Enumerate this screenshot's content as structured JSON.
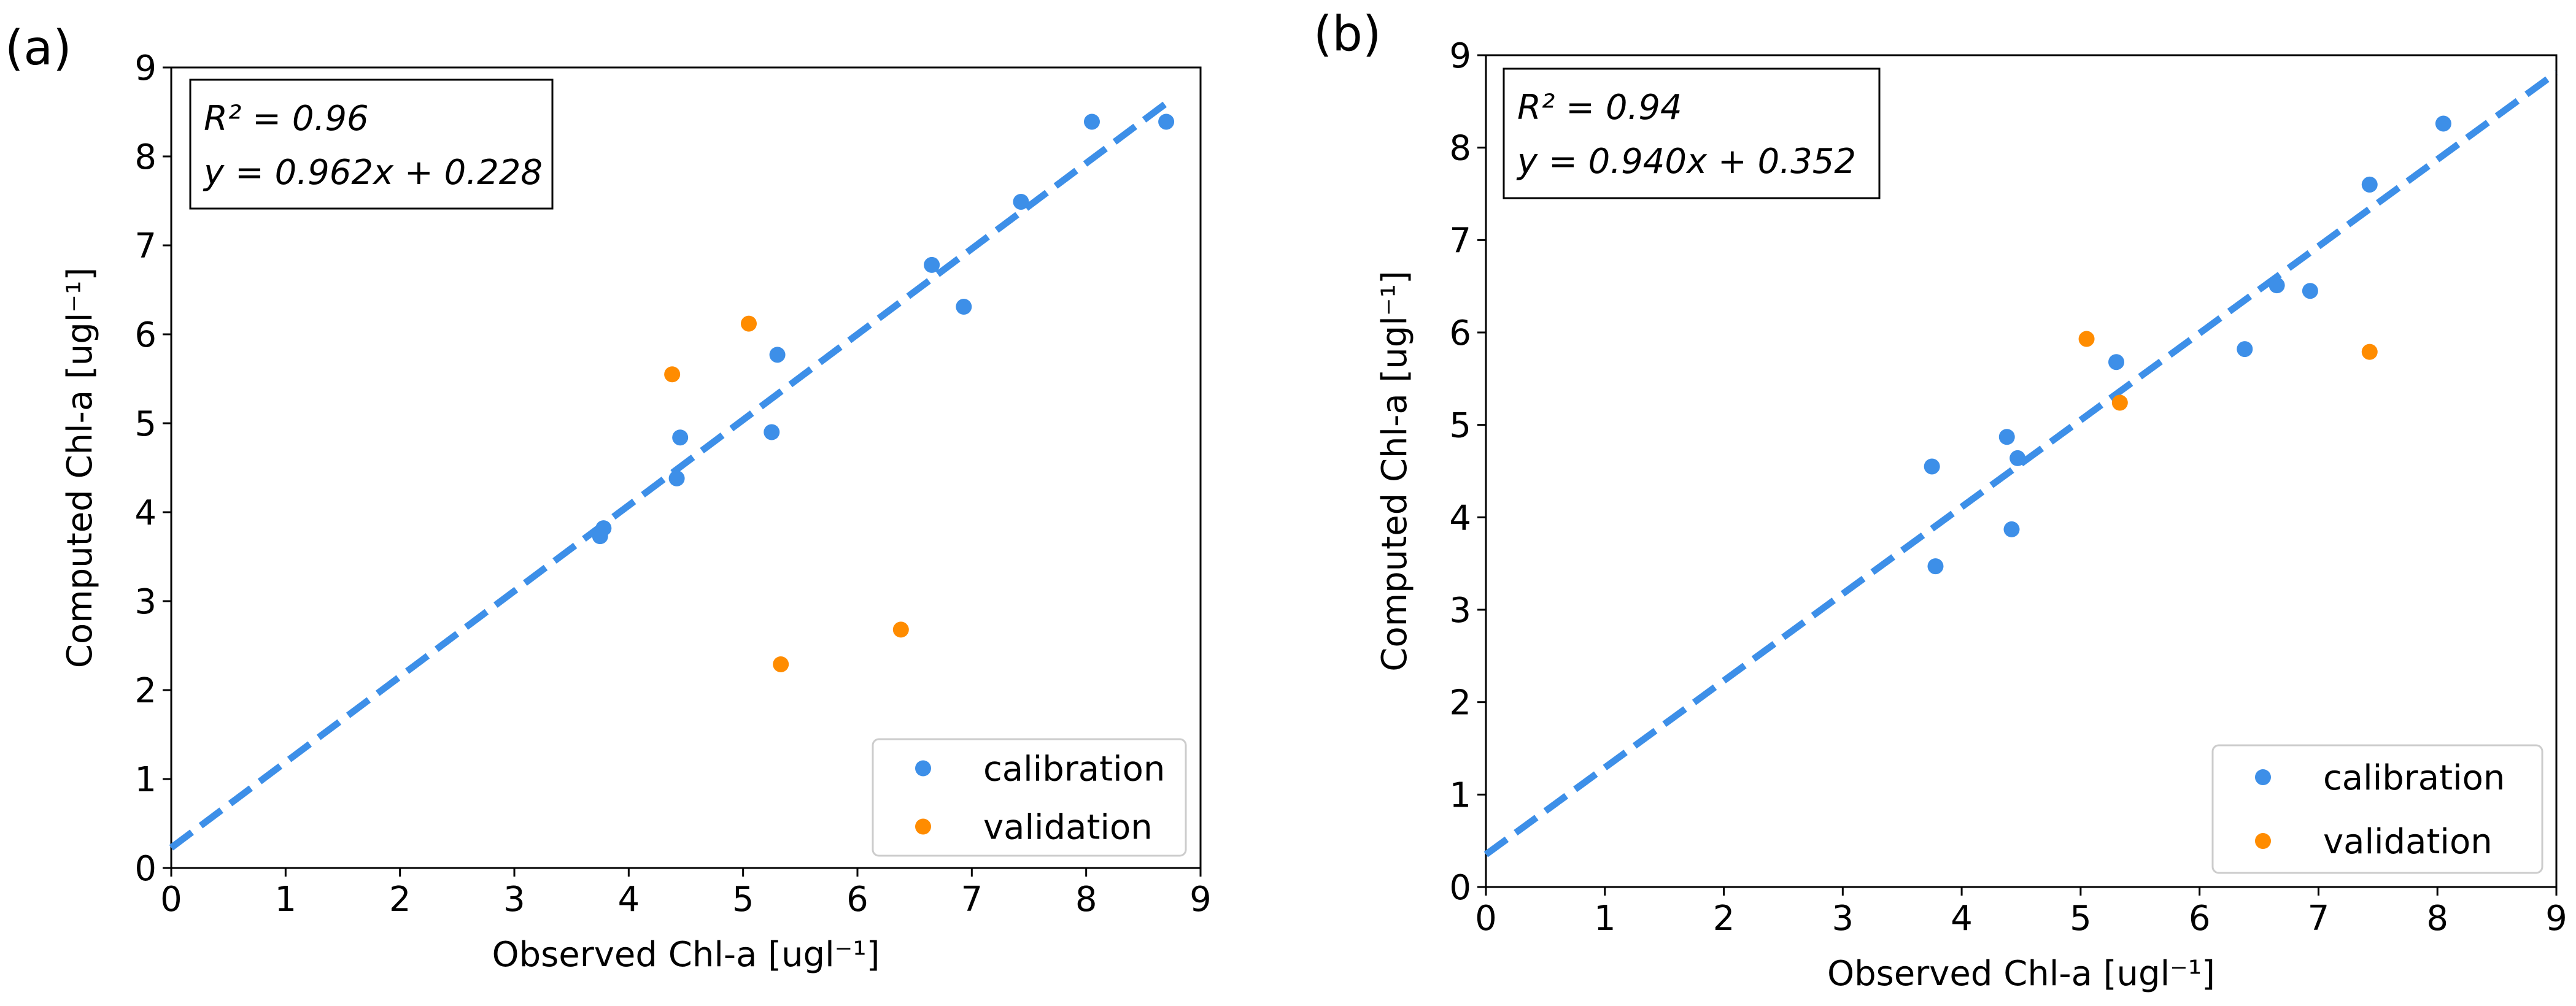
{
  "chart_data": [
    {
      "type": "scatter",
      "panel_label": "(a)",
      "xlabel": "Observed Chl-a [ugl⁻¹]",
      "ylabel": "Computed Chl-a [ugl⁻¹]",
      "xlim": [
        0,
        9
      ],
      "ylim": [
        0,
        9
      ],
      "xticks": [
        "0",
        "1",
        "2",
        "3",
        "4",
        "5",
        "6",
        "7",
        "8",
        "9"
      ],
      "yticks": [
        "0",
        "1",
        "2",
        "3",
        "4",
        "5",
        "6",
        "7",
        "8",
        "9"
      ],
      "annotation": {
        "r2": "R² = 0.96",
        "equation": "y = 0.962x + 0.228"
      },
      "fit": {
        "slope": 0.962,
        "intercept": 0.228,
        "x_range": [
          0,
          8.75
        ],
        "color": "#3d8fe8"
      },
      "legend_position": "lower-right",
      "series": [
        {
          "name": "calibration",
          "color": "#3d8fe8",
          "points": [
            [
              3.75,
              3.73
            ],
            [
              3.78,
              3.82
            ],
            [
              4.42,
              4.38
            ],
            [
              4.45,
              4.84
            ],
            [
              5.25,
              4.9
            ],
            [
              5.3,
              5.77
            ],
            [
              6.65,
              6.78
            ],
            [
              6.93,
              6.31
            ],
            [
              7.43,
              7.49
            ],
            [
              8.05,
              8.39
            ],
            [
              8.7,
              8.39
            ]
          ]
        },
        {
          "name": "validation",
          "color": "#ff8c00",
          "points": [
            [
              4.38,
              5.55
            ],
            [
              5.05,
              6.12
            ],
            [
              5.33,
              2.29
            ],
            [
              6.38,
              2.68
            ]
          ]
        }
      ]
    },
    {
      "type": "scatter",
      "panel_label": "(b)",
      "xlabel": "Observed Chl-a [ugl⁻¹]",
      "ylabel": "Computed Chl-a [ugl⁻¹]",
      "xlim": [
        0,
        9
      ],
      "ylim": [
        0,
        9
      ],
      "xticks": [
        "0",
        "1",
        "2",
        "3",
        "4",
        "5",
        "6",
        "7",
        "8",
        "9"
      ],
      "yticks": [
        "0",
        "1",
        "2",
        "3",
        "4",
        "5",
        "6",
        "7",
        "8",
        "9"
      ],
      "annotation": {
        "r2": "R² = 0.94",
        "equation": "y = 0.940x + 0.352"
      },
      "fit": {
        "slope": 0.94,
        "intercept": 0.352,
        "x_range": [
          0,
          9
        ],
        "color": "#3d8fe8"
      },
      "legend_position": "lower-right",
      "series": [
        {
          "name": "calibration",
          "color": "#3d8fe8",
          "points": [
            [
              3.75,
              4.55
            ],
            [
              3.78,
              3.47
            ],
            [
              4.38,
              4.87
            ],
            [
              4.42,
              3.87
            ],
            [
              4.47,
              4.64
            ],
            [
              5.3,
              5.68
            ],
            [
              6.38,
              5.82
            ],
            [
              6.65,
              6.51
            ],
            [
              6.93,
              6.45
            ],
            [
              7.43,
              7.6
            ],
            [
              8.05,
              8.26
            ]
          ]
        },
        {
          "name": "validation",
          "color": "#ff8c00",
          "points": [
            [
              5.05,
              5.93
            ],
            [
              5.33,
              5.24
            ],
            [
              7.43,
              5.79
            ]
          ]
        }
      ]
    }
  ]
}
